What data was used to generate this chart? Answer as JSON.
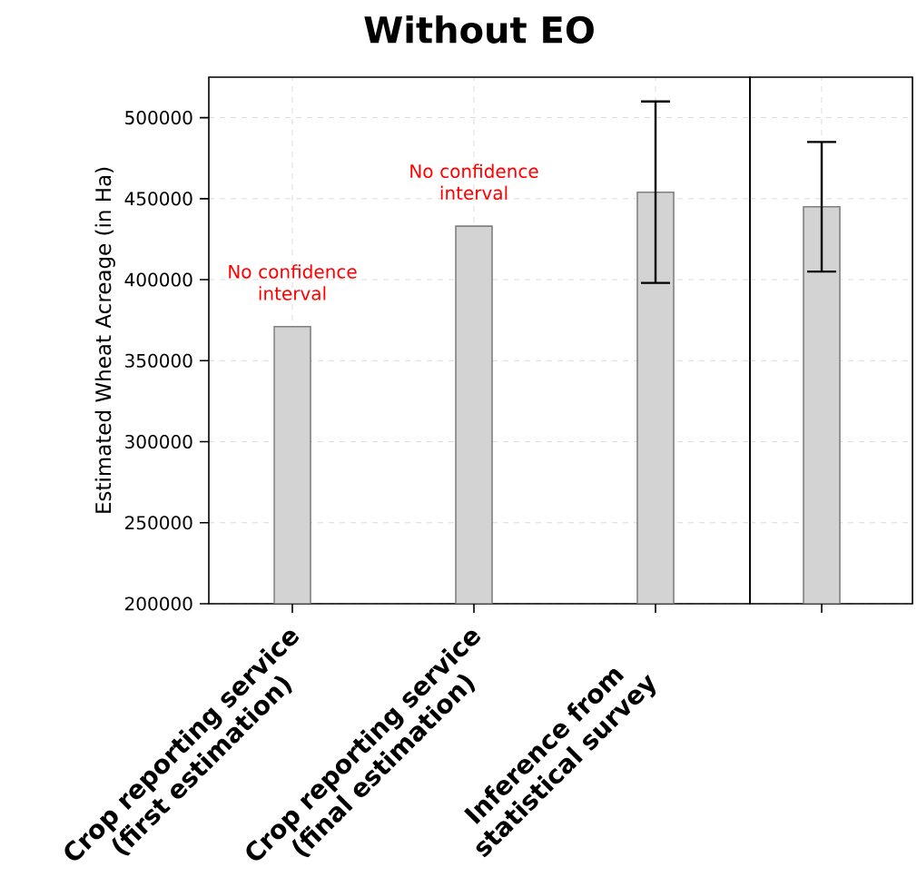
{
  "chart_data": [
    {
      "type": "bar",
      "title": "Without EO",
      "ylabel": "Estimated Wheat Acreage (in Ha)",
      "categories": [
        "Crop reporting service (first estimation)",
        "Crop reporting service (final estimation)",
        "Inference from statistical survey"
      ],
      "values": [
        371000,
        433000,
        454000
      ],
      "errors": [
        null,
        null,
        [
          398000,
          510000
        ]
      ],
      "color": "#d3d3d3",
      "ylim": [
        200000,
        525000
      ],
      "yticks": [
        200000,
        250000,
        300000,
        350000,
        400000,
        450000,
        500000
      ],
      "grid": true,
      "annotations": [
        {
          "text": "No confidence interval",
          "x": "Crop reporting service (first estimation)",
          "y": 371000
        },
        {
          "text": "No confidence interval",
          "x": "Crop reporting service (final estimation)",
          "y": 433000
        }
      ]
    },
    {
      "type": "bar",
      "categories": [
        null
      ],
      "values": [
        445000
      ],
      "errors": [
        [
          405000,
          485000
        ]
      ],
      "color": "#d3d3d3",
      "ylim": [
        200000,
        525000
      ],
      "yticks": [
        200000,
        250000,
        300000,
        350000,
        400000,
        450000,
        500000
      ],
      "grid": true,
      "tick_labels": false
    }
  ]
}
